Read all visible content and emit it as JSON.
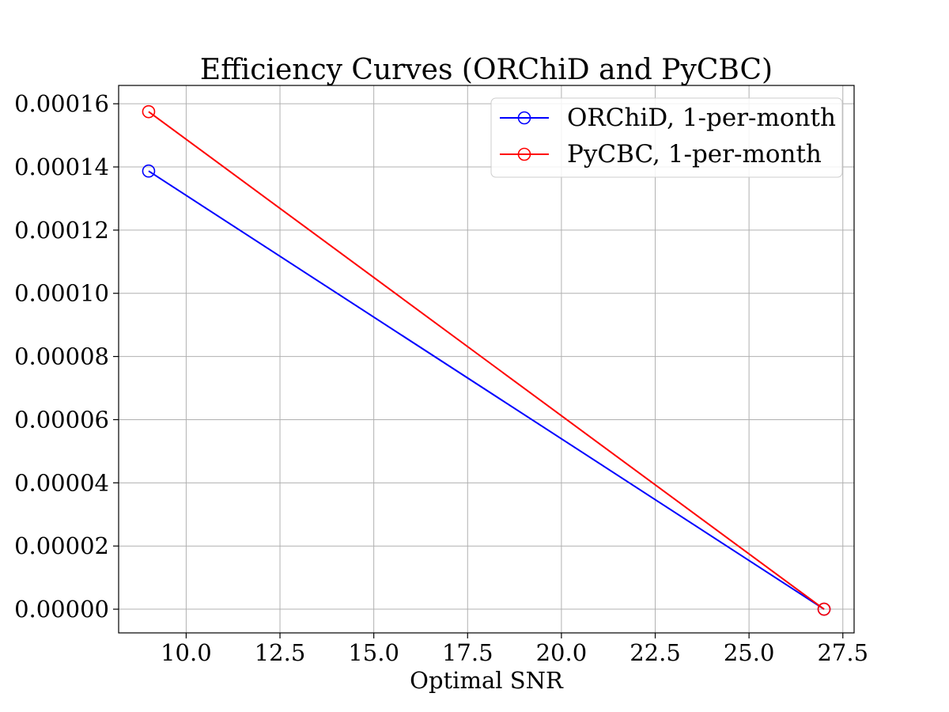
{
  "chart_data": {
    "type": "line",
    "title": "Efficiency Curves (ORChiD and PyCBC)",
    "xlabel": "Optimal SNR",
    "ylabel": "",
    "xlim": [
      8.2,
      27.8
    ],
    "ylim": [
      -7.5e-06,
      0.0001658
    ],
    "xticks": [
      10.0,
      12.5,
      15.0,
      17.5,
      20.0,
      22.5,
      25.0,
      27.5
    ],
    "xtick_labels": [
      "10.0",
      "12.5",
      "15.0",
      "17.5",
      "20.0",
      "22.5",
      "25.0",
      "27.5"
    ],
    "yticks": [
      0,
      2e-05,
      4e-05,
      6e-05,
      8e-05,
      0.0001,
      0.00012,
      0.00014,
      0.00016
    ],
    "ytick_labels": [
      "0.00000",
      "0.00002",
      "0.00004",
      "0.00006",
      "0.00008",
      "0.00010",
      "0.00012",
      "0.00014",
      "0.00016"
    ],
    "grid": true,
    "legend_position": "top-right",
    "series": [
      {
        "name": "ORChiD, 1-per-month",
        "color": "#0000ff",
        "marker": "open-circle",
        "x": [
          9.0,
          27.0
        ],
        "y": [
          0.0001387,
          0.0
        ]
      },
      {
        "name": "PyCBC, 1-per-month",
        "color": "#ff0000",
        "marker": "open-circle",
        "x": [
          9.0,
          27.0
        ],
        "y": [
          0.0001575,
          0.0
        ]
      }
    ]
  }
}
